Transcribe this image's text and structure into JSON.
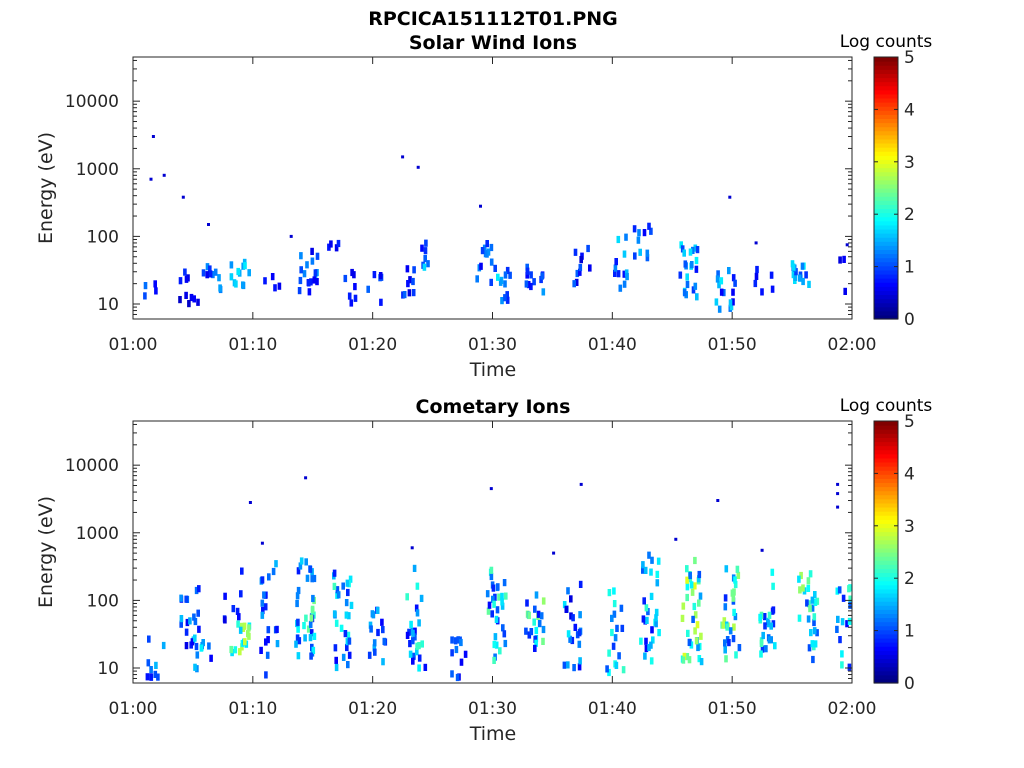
{
  "figure": {
    "filename": "RPCICA151112T01.PNG"
  },
  "chart_data": [
    {
      "type": "heatmap",
      "title": "Solar Wind Ions",
      "xlabel": "Time",
      "ylabel": "Energy (eV)",
      "x_range": [
        "01:00",
        "02:00"
      ],
      "x_ticks": [
        "01:00",
        "01:10",
        "01:20",
        "01:30",
        "01:40",
        "01:50",
        "02:00"
      ],
      "y_scale": "log",
      "y_range": [
        6,
        45000
      ],
      "y_ticks": [
        10,
        100,
        1000,
        10000
      ],
      "y_tick_labels": [
        "10",
        "100",
        "1000",
        "10000"
      ],
      "colorbar": {
        "label": "Log counts",
        "range": [
          0,
          5
        ],
        "ticks": [
          "0",
          "1",
          "2",
          "3",
          "4",
          "5"
        ],
        "colormap": "jet"
      },
      "clusters": [
        {
          "t": 1.5,
          "e": [
            12,
            20
          ],
          "c": [
            0.6,
            1.3
          ],
          "n": 4
        },
        {
          "t": 4.5,
          "e": [
            8,
            30
          ],
          "c": [
            0.3,
            1.0
          ],
          "n": 10
        },
        {
          "t": 6.5,
          "e": [
            15,
            40
          ],
          "c": [
            0.5,
            1.5
          ],
          "n": 10
        },
        {
          "t": 8.8,
          "e": [
            18,
            42
          ],
          "c": [
            1.3,
            1.8
          ],
          "n": 12
        },
        {
          "t": 11.4,
          "e": [
            12,
            30
          ],
          "c": [
            0.5,
            1.0
          ],
          "n": 4
        },
        {
          "t": 14.5,
          "e": [
            15,
            60
          ],
          "c": [
            0.5,
            1.5
          ],
          "n": 18
        },
        {
          "t": 16.5,
          "e": [
            60,
            170
          ],
          "c": [
            0.5,
            0.9
          ],
          "n": 4
        },
        {
          "t": 18.0,
          "e": [
            10,
            35
          ],
          "c": [
            0.4,
            1.0
          ],
          "n": 7
        },
        {
          "t": 20.2,
          "e": [
            10,
            30
          ],
          "c": [
            0.4,
            1.2
          ],
          "n": 6
        },
        {
          "t": 22.5,
          "e": [
            12,
            35
          ],
          "c": [
            0.4,
            1.2
          ],
          "n": 8
        },
        {
          "t": 23.8,
          "e": [
            25,
            80
          ],
          "c": [
            0.6,
            1.8
          ],
          "n": 8
        },
        {
          "t": 29.3,
          "e": [
            18,
            80
          ],
          "c": [
            0.5,
            1.4
          ],
          "n": 12
        },
        {
          "t": 30.6,
          "e": [
            10,
            35
          ],
          "c": [
            0.8,
            1.8
          ],
          "n": 12
        },
        {
          "t": 33.4,
          "e": [
            12,
            35
          ],
          "c": [
            0.5,
            1.4
          ],
          "n": 12
        },
        {
          "t": 37.3,
          "e": [
            15,
            70
          ],
          "c": [
            0.4,
            1.2
          ],
          "n": 10
        },
        {
          "t": 40.3,
          "e": [
            15,
            100
          ],
          "c": [
            0.6,
            1.8
          ],
          "n": 12
        },
        {
          "t": 42.5,
          "e": [
            40,
            200
          ],
          "c": [
            0.6,
            1.6
          ],
          "n": 10
        },
        {
          "t": 46.3,
          "e": [
            12,
            80
          ],
          "c": [
            0.6,
            1.9
          ],
          "n": 22
        },
        {
          "t": 49.3,
          "e": [
            8,
            40
          ],
          "c": [
            0.5,
            1.8
          ],
          "n": 16
        },
        {
          "t": 52.5,
          "e": [
            12,
            35
          ],
          "c": [
            0.4,
            1.2
          ],
          "n": 6
        },
        {
          "t": 55.6,
          "e": [
            18,
            40
          ],
          "c": [
            0.8,
            1.9
          ],
          "n": 16
        },
        {
          "t": 59.6,
          "e": [
            14,
            70
          ],
          "c": [
            0.4,
            1.2
          ],
          "n": 6
        }
      ],
      "points": [
        {
          "t": 1.5,
          "e": 700,
          "c": 0.4
        },
        {
          "t": 1.7,
          "e": 3000,
          "c": 0.4
        },
        {
          "t": 2.6,
          "e": 800,
          "c": 0.4
        },
        {
          "t": 4.2,
          "e": 380,
          "c": 0.4
        },
        {
          "t": 6.3,
          "e": 150,
          "c": 0.4
        },
        {
          "t": 13.2,
          "e": 100,
          "c": 0.4
        },
        {
          "t": 22.5,
          "e": 1500,
          "c": 0.4
        },
        {
          "t": 23.8,
          "e": 1050,
          "c": 0.4
        },
        {
          "t": 29.0,
          "e": 280,
          "c": 0.4
        },
        {
          "t": 49.8,
          "e": 380,
          "c": 0.4
        },
        {
          "t": 52.0,
          "e": 80,
          "c": 0.4
        },
        {
          "t": 59.6,
          "e": 75,
          "c": 0.4
        }
      ]
    },
    {
      "type": "heatmap",
      "title": "Cometary Ions",
      "xlabel": "Time",
      "ylabel": "Energy (eV)",
      "x_range": [
        "01:00",
        "02:00"
      ],
      "x_ticks": [
        "01:00",
        "01:10",
        "01:20",
        "01:30",
        "01:40",
        "01:50",
        "02:00"
      ],
      "y_scale": "log",
      "y_range": [
        6,
        45000
      ],
      "y_ticks": [
        10,
        100,
        1000,
        10000
      ],
      "y_tick_labels": [
        "10",
        "100",
        "1000",
        "10000"
      ],
      "colorbar": {
        "label": "Log counts",
        "range": [
          0,
          5
        ],
        "ticks": [
          "0",
          "1",
          "2",
          "3",
          "4",
          "5"
        ],
        "colormap": "jet"
      },
      "clusters": [
        {
          "t": 0.5,
          "e": [
            60,
            100
          ],
          "c": [
            0.4,
            0.8
          ],
          "n": 4
        },
        {
          "t": 1.8,
          "e": [
            7,
            30
          ],
          "c": [
            0.6,
            1.6
          ],
          "n": 10
        },
        {
          "t": 4.6,
          "e": [
            20,
            150
          ],
          "c": [
            0.5,
            1.6
          ],
          "n": 16
        },
        {
          "t": 5.6,
          "e": [
            7,
            40
          ],
          "c": [
            0.6,
            2.0
          ],
          "n": 14
        },
        {
          "t": 8.8,
          "e": [
            15,
            45
          ],
          "c": [
            1.6,
            2.9
          ],
          "n": 18
        },
        {
          "t": 8.2,
          "e": [
            50,
            300
          ],
          "c": [
            0.4,
            1.0
          ],
          "n": 8
        },
        {
          "t": 11.2,
          "e": [
            7,
            400
          ],
          "c": [
            0.5,
            1.6
          ],
          "n": 22
        },
        {
          "t": 14.2,
          "e": [
            15,
            500
          ],
          "c": [
            0.7,
            2.5
          ],
          "n": 40
        },
        {
          "t": 17.3,
          "e": [
            10,
            300
          ],
          "c": [
            0.6,
            2.2
          ],
          "n": 30
        },
        {
          "t": 20.4,
          "e": [
            10,
            80
          ],
          "c": [
            0.5,
            1.6
          ],
          "n": 16
        },
        {
          "t": 23.5,
          "e": [
            10,
            300
          ],
          "c": [
            0.6,
            2.2
          ],
          "n": 26
        },
        {
          "t": 27.0,
          "e": [
            7,
            30
          ],
          "c": [
            0.5,
            1.4
          ],
          "n": 12
        },
        {
          "t": 30.2,
          "e": [
            12,
            300
          ],
          "c": [
            0.6,
            2.4
          ],
          "n": 32
        },
        {
          "t": 33.4,
          "e": [
            15,
            150
          ],
          "c": [
            0.6,
            2.6
          ],
          "n": 22
        },
        {
          "t": 36.5,
          "e": [
            10,
            200
          ],
          "c": [
            0.4,
            1.8
          ],
          "n": 22
        },
        {
          "t": 40.0,
          "e": [
            8,
            150
          ],
          "c": [
            0.7,
            2.2
          ],
          "n": 18
        },
        {
          "t": 43.0,
          "e": [
            12,
            500
          ],
          "c": [
            0.6,
            2.1
          ],
          "n": 30
        },
        {
          "t": 46.5,
          "e": [
            12,
            400
          ],
          "c": [
            1.0,
            3.0
          ],
          "n": 40
        },
        {
          "t": 49.7,
          "e": [
            10,
            300
          ],
          "c": [
            0.8,
            2.8
          ],
          "n": 30
        },
        {
          "t": 52.9,
          "e": [
            15,
            300
          ],
          "c": [
            0.6,
            2.3
          ],
          "n": 24
        },
        {
          "t": 56.2,
          "e": [
            12,
            250
          ],
          "c": [
            0.8,
            2.7
          ],
          "n": 28
        },
        {
          "t": 59.3,
          "e": [
            10,
            200
          ],
          "c": [
            0.5,
            2.2
          ],
          "n": 20
        }
      ],
      "points": [
        {
          "t": 9.8,
          "e": 2800,
          "c": 0.4
        },
        {
          "t": 14.4,
          "e": 6500,
          "c": 0.4
        },
        {
          "t": 29.9,
          "e": 4500,
          "c": 0.4
        },
        {
          "t": 37.4,
          "e": 5200,
          "c": 0.4
        },
        {
          "t": 48.8,
          "e": 3000,
          "c": 0.4
        },
        {
          "t": 58.8,
          "e": 5200,
          "c": 0.4
        },
        {
          "t": 58.8,
          "e": 3800,
          "c": 0.4
        },
        {
          "t": 58.8,
          "e": 2400,
          "c": 0.4
        },
        {
          "t": 10.8,
          "e": 700,
          "c": 0.4
        },
        {
          "t": 23.3,
          "e": 600,
          "c": 0.4
        },
        {
          "t": 35.1,
          "e": 500,
          "c": 0.4
        },
        {
          "t": 45.3,
          "e": 800,
          "c": 0.4
        },
        {
          "t": 52.5,
          "e": 550,
          "c": 0.4
        }
      ]
    }
  ]
}
